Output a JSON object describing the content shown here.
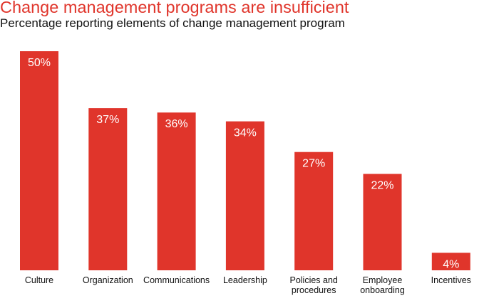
{
  "chart_data": {
    "type": "bar",
    "title": "Change management programs are insufficient",
    "subtitle": "Percentage reporting elements of change management program",
    "categories": [
      [
        "Culture"
      ],
      [
        "Organization"
      ],
      [
        "Communications"
      ],
      [
        "Leadership"
      ],
      [
        "Policies and",
        "procedures"
      ],
      [
        "Employee",
        "onboarding"
      ],
      [
        "Incentives"
      ]
    ],
    "values": [
      50,
      37,
      36,
      34,
      27,
      22,
      4
    ],
    "value_labels": [
      "50%",
      "37%",
      "36%",
      "34%",
      "27%",
      "22%",
      "4%"
    ],
    "ylim": [
      0,
      50
    ],
    "grid": false,
    "legend": "none",
    "bar_color": "#e0352b",
    "label_color": "#ffffff"
  }
}
